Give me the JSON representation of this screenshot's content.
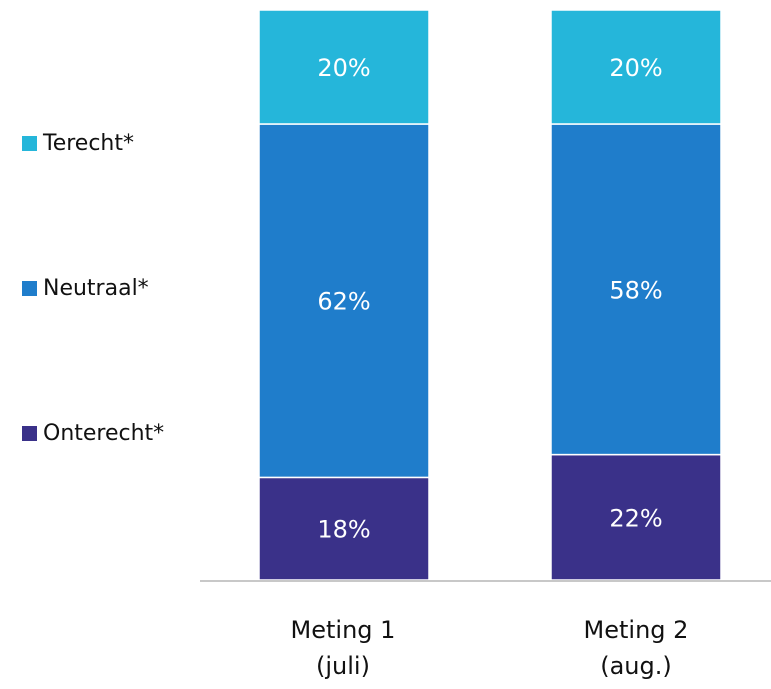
{
  "chart_data": {
    "type": "bar",
    "stacked": true,
    "categories": [
      "Meting 1",
      "Meting 2"
    ],
    "category_sublabels": [
      "(juli)",
      "(aug.)"
    ],
    "series": [
      {
        "name": "Onterecht*",
        "values": [
          18,
          22
        ],
        "color": "#3a3189"
      },
      {
        "name": "Neutraal*",
        "values": [
          62,
          58
        ],
        "color": "#1f7dcb"
      },
      {
        "name": "Terecht*",
        "values": [
          20,
          20
        ],
        "color": "#25b6da"
      }
    ],
    "data_labels": [
      [
        "18%",
        "22%"
      ],
      [
        "62%",
        "58%"
      ],
      [
        "20%",
        "20%"
      ]
    ],
    "ylim": [
      0,
      100
    ],
    "legend_position": "left",
    "grid": false
  }
}
